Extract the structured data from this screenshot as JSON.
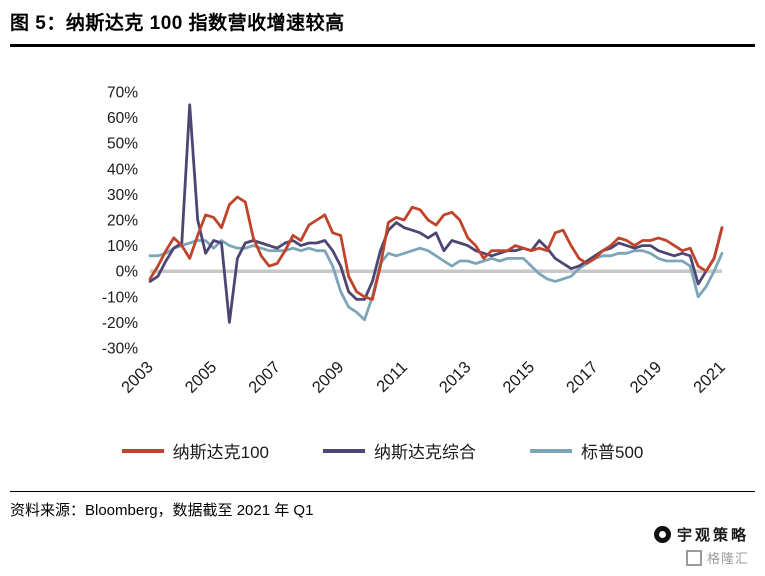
{
  "header": {
    "title": "图 5：纳斯达克 100 指数营收增速较高"
  },
  "footer": {
    "source": "资料来源：Bloomberg，数据截至 2021 年 Q1"
  },
  "watermark": {
    "brand_top": "宇观策略",
    "brand_bottom": "格隆汇"
  },
  "chart_data": {
    "type": "line",
    "title": "纳斯达克 100 指数营收增速较高",
    "x_unit": "quarterly, 2003Q1 - 2021Q1",
    "x_count": 73,
    "ylim": [
      -30,
      70
    ],
    "grid": "zero-line only",
    "legend_position": "bottom",
    "zero_line_color": "#c7c7c7",
    "y_ticks": [
      {
        "label": "70%",
        "value": 70
      },
      {
        "label": "60%",
        "value": 60
      },
      {
        "label": "50%",
        "value": 50
      },
      {
        "label": "40%",
        "value": 40
      },
      {
        "label": "30%",
        "value": 30
      },
      {
        "label": "20%",
        "value": 20
      },
      {
        "label": "10%",
        "value": 10
      },
      {
        "label": "0%",
        "value": 0
      },
      {
        "label": "-10%",
        "value": -10
      },
      {
        "label": "-20%",
        "value": -20
      },
      {
        "label": "-30%",
        "value": -30
      }
    ],
    "x_ticks": [
      {
        "label": "2003",
        "index": 0
      },
      {
        "label": "2005",
        "index": 8
      },
      {
        "label": "2007",
        "index": 16
      },
      {
        "label": "2009",
        "index": 24
      },
      {
        "label": "2011",
        "index": 32
      },
      {
        "label": "2013",
        "index": 40
      },
      {
        "label": "2015",
        "index": 48
      },
      {
        "label": "2017",
        "index": 56
      },
      {
        "label": "2019",
        "index": 64
      },
      {
        "label": "2021",
        "index": 72
      }
    ],
    "series": [
      {
        "name": "纳斯达克100",
        "color": "#c0432b",
        "values": [
          -3,
          2,
          8,
          13,
          10,
          5,
          14,
          22,
          21,
          17,
          26,
          29,
          27,
          13,
          6,
          2,
          3,
          8,
          14,
          12,
          18,
          20,
          22,
          15,
          14,
          -2,
          -8,
          -10,
          -11,
          2,
          19,
          21,
          20,
          25,
          24,
          20,
          18,
          22,
          23,
          20,
          13,
          10,
          5,
          8,
          8,
          8,
          10,
          9,
          8,
          9,
          8,
          15,
          16,
          10,
          5,
          3,
          5,
          8,
          10,
          13,
          12,
          10,
          12,
          12,
          13,
          12,
          10,
          8,
          9,
          2,
          0,
          5,
          17
        ]
      },
      {
        "name": "纳斯达克综合",
        "color": "#4e4672",
        "values": [
          -4,
          -2,
          4,
          9,
          11,
          65,
          20,
          7,
          12,
          11,
          -20,
          5,
          11,
          12,
          11,
          10,
          9,
          11,
          12,
          10,
          11,
          11,
          12,
          8,
          2,
          -8,
          -11,
          -11,
          -4,
          8,
          16,
          19,
          17,
          16,
          15,
          13,
          15,
          8,
          12,
          11,
          10,
          8,
          7,
          6,
          7,
          8,
          8,
          9,
          8,
          12,
          9,
          5,
          3,
          1,
          2,
          4,
          6,
          8,
          9,
          11,
          10,
          9,
          10,
          10,
          8,
          7,
          6,
          7,
          6,
          -5,
          0,
          5,
          17
        ]
      },
      {
        "name": "标普500",
        "color": "#7ca6b8",
        "values": [
          6,
          6,
          7,
          9,
          10,
          11,
          12,
          12,
          9,
          12,
          10,
          9,
          9,
          10,
          9,
          8,
          8,
          8,
          9,
          8,
          9,
          8,
          8,
          2,
          -8,
          -14,
          -16,
          -19,
          -10,
          3,
          7,
          6,
          7,
          8,
          9,
          8,
          6,
          4,
          2,
          4,
          4,
          3,
          4,
          5,
          4,
          5,
          5,
          5,
          2,
          -1,
          -3,
          -4,
          -3,
          -2,
          1,
          3,
          5,
          6,
          6,
          7,
          7,
          8,
          8,
          7,
          5,
          4,
          4,
          4,
          2,
          -10,
          -6,
          0,
          7
        ]
      }
    ]
  }
}
